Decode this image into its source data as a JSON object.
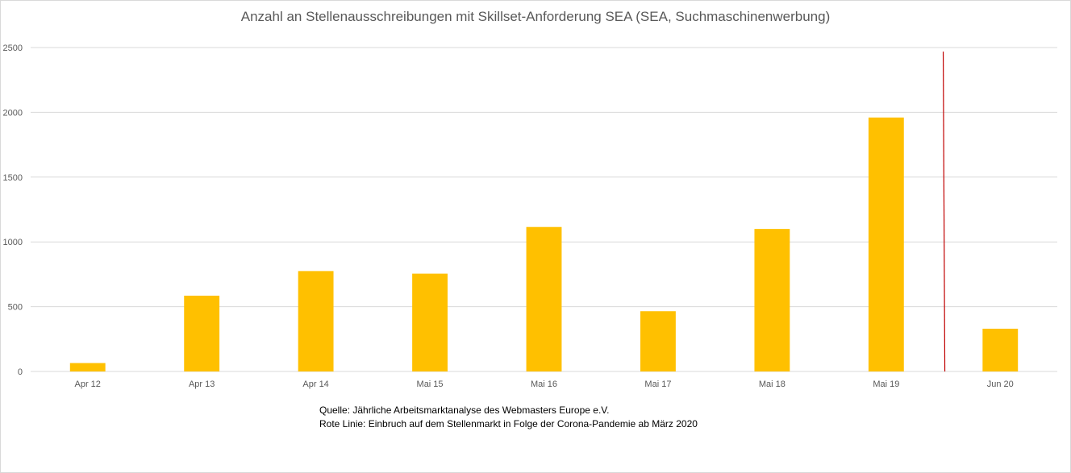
{
  "chart_data": {
    "type": "bar",
    "title": "Anzahl an Stellenausschreibungen mit Skillset-Anforderung SEA (SEA, Suchmaschinenwerbung)",
    "categories": [
      "Apr 12",
      "Apr 13",
      "Apr 14",
      "Mai 15",
      "Mai 16",
      "Mai 17",
      "Mai 18",
      "Mai 19",
      "Jun 20"
    ],
    "series": [
      {
        "values": [
          65,
          585,
          775,
          755,
          1115,
          465,
          1100,
          1960,
          330
        ],
        "color": "#FFC000"
      }
    ],
    "yticks": [
      "0",
      "500",
      "1000",
      "1500",
      "2000",
      "2500"
    ],
    "ylim": [
      0,
      2500
    ],
    "grid": true,
    "marker_line": {
      "between": [
        "Mai 19",
        "Jun 20"
      ],
      "color": "#C00000"
    },
    "notes": [
      "Quelle: Jährliche Arbeitsmarktanalyse des Webmasters Europe e.V.",
      "Rote Linie: Einbruch auf dem Stellenmarkt in Folge der Corona-Pandemie ab März 2020"
    ]
  }
}
